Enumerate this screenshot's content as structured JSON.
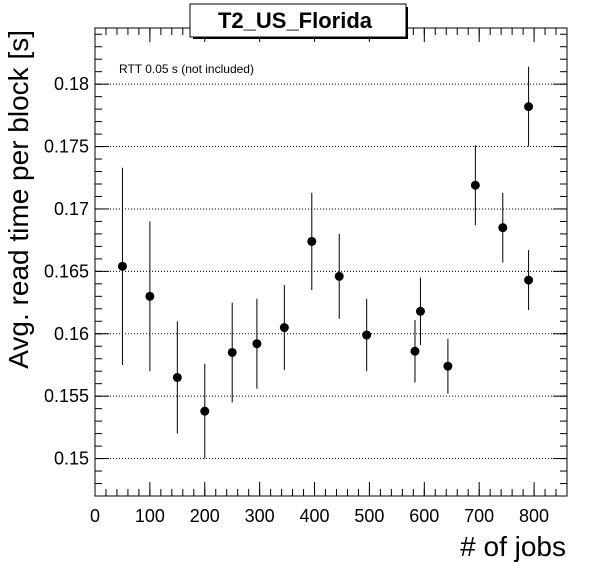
{
  "chart_data": {
    "type": "scatter",
    "title": "T2_US_Florida",
    "xlabel": "# of jobs",
    "ylabel": "Avg. read time per block [s]",
    "annotation": "RTT 0.05 s (not included)",
    "xlim": [
      0,
      860
    ],
    "ylim": [
      0.147,
      0.1845
    ],
    "x_ticks": [
      0,
      100,
      200,
      300,
      400,
      500,
      600,
      700,
      800
    ],
    "x_tick_labels": [
      "0",
      "100",
      "200",
      "300",
      "400",
      "500",
      "600",
      "700",
      "800"
    ],
    "y_ticks": [
      0.15,
      0.155,
      0.16,
      0.165,
      0.17,
      0.175,
      0.18
    ],
    "y_tick_labels": [
      "0.15",
      "0.155",
      "0.16",
      "0.165",
      "0.17",
      "0.175",
      "0.18"
    ],
    "y_grid": true,
    "x_grid": false,
    "marker_color": "#000000",
    "points": [
      {
        "x": 50,
        "y": 0.1654,
        "err": 0.0079
      },
      {
        "x": 100,
        "y": 0.163,
        "err": 0.006
      },
      {
        "x": 150,
        "y": 0.1565,
        "err": 0.0045
      },
      {
        "x": 200,
        "y": 0.1538,
        "err": 0.0038
      },
      {
        "x": 250,
        "y": 0.1585,
        "err": 0.004
      },
      {
        "x": 295,
        "y": 0.1592,
        "err": 0.0036
      },
      {
        "x": 345,
        "y": 0.1605,
        "err": 0.0034
      },
      {
        "x": 395,
        "y": 0.1674,
        "err": 0.0039
      },
      {
        "x": 445,
        "y": 0.1646,
        "err": 0.0034
      },
      {
        "x": 495,
        "y": 0.1599,
        "err": 0.0029
      },
      {
        "x": 583,
        "y": 0.1586,
        "err": 0.0025
      },
      {
        "x": 593,
        "y": 0.1618,
        "err": 0.0027
      },
      {
        "x": 643,
        "y": 0.1574,
        "err": 0.0022
      },
      {
        "x": 693,
        "y": 0.1719,
        "err": 0.0032
      },
      {
        "x": 743,
        "y": 0.1685,
        "err": 0.0028
      },
      {
        "x": 790,
        "y": 0.1643,
        "err": 0.0024
      },
      {
        "x": 790,
        "y": 0.1782,
        "err": 0.0032
      }
    ]
  }
}
